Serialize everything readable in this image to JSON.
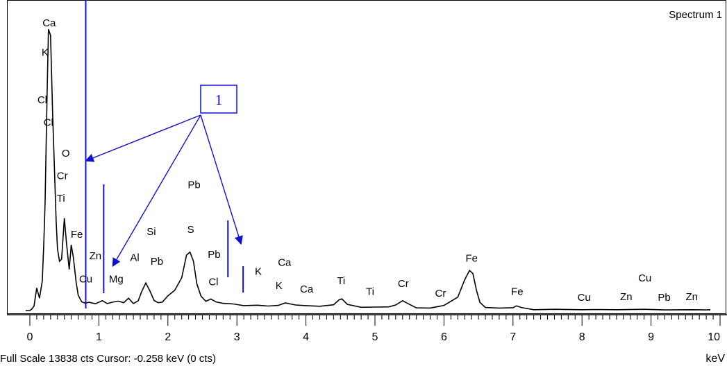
{
  "chart_data": {
    "type": "line",
    "title": "Spectrum 1",
    "xlabel": "keV",
    "xlim": [
      0,
      10
    ],
    "x_ticks": [
      "0",
      "1",
      "2",
      "3",
      "4",
      "5",
      "6",
      "7",
      "8",
      "9",
      "10"
    ],
    "grid": false,
    "series": [
      {
        "x": [
          -0.06,
          0.0,
          0.03,
          0.06,
          0.1,
          0.14,
          0.18,
          0.2,
          0.22,
          0.25,
          0.27,
          0.3,
          0.33,
          0.36,
          0.38,
          0.4,
          0.43,
          0.46,
          0.5,
          0.53,
          0.57,
          0.6,
          0.63,
          0.67,
          0.7,
          0.75,
          0.8,
          0.86,
          0.95,
          1.05,
          1.12,
          1.2,
          1.28,
          1.36,
          1.43,
          1.5,
          1.57,
          1.62,
          1.68,
          1.74,
          1.8,
          1.86,
          1.92,
          2.0,
          2.1,
          2.2,
          2.27,
          2.32,
          2.37,
          2.42,
          2.48,
          2.55,
          2.62,
          2.7,
          2.8,
          2.95,
          3.1,
          3.3,
          3.45,
          3.6,
          3.7,
          3.85,
          4.0,
          4.2,
          4.4,
          4.48,
          4.52,
          4.6,
          4.8,
          5.0,
          5.2,
          5.3,
          5.4,
          5.5,
          5.6,
          5.8,
          6.0,
          6.2,
          6.3,
          6.37,
          6.42,
          6.47,
          6.52,
          6.6,
          6.8,
          7.0,
          7.05,
          7.12,
          7.3,
          7.6,
          8.0,
          8.2,
          8.5,
          8.9,
          9.2,
          9.6,
          9.8,
          9.85
        ],
        "y": [
          0,
          0,
          80,
          220,
          1100,
          600,
          1450,
          3100,
          5200,
          10500,
          13700,
          13400,
          9600,
          6500,
          4400,
          3000,
          2400,
          2500,
          4500,
          3300,
          2000,
          3200,
          2600,
          1400,
          750,
          430,
          360,
          400,
          330,
          480,
          340,
          410,
          460,
          380,
          600,
          340,
          480,
          920,
          1340,
          950,
          490,
          380,
          410,
          720,
          990,
          1600,
          2700,
          2850,
          2400,
          1300,
          700,
          450,
          560,
          420,
          350,
          320,
          240,
          260,
          220,
          250,
          370,
          270,
          240,
          210,
          280,
          520,
          570,
          300,
          160,
          170,
          180,
          270,
          480,
          300,
          130,
          120,
          250,
          650,
          1500,
          1950,
          1800,
          1000,
          400,
          150,
          120,
          140,
          230,
          150,
          40,
          60,
          40,
          50,
          40,
          60,
          30,
          40,
          30,
          40
        ]
      }
    ],
    "peak_labels": [
      {
        "text": "Ca",
        "x": 0.28,
        "y": 13838
      },
      {
        "text": "K",
        "x": 0.22,
        "y": 12400
      },
      {
        "text": "Cl",
        "x": 0.18,
        "y": 10100
      },
      {
        "text": "Cl",
        "x": 0.27,
        "y": 9000
      },
      {
        "text": "O",
        "x": 0.52,
        "y": 7500
      },
      {
        "text": "Cr",
        "x": 0.47,
        "y": 6400
      },
      {
        "text": "Ti",
        "x": 0.45,
        "y": 5300
      },
      {
        "text": "Fe",
        "x": 0.68,
        "y": 3550
      },
      {
        "text": "Zn",
        "x": 0.95,
        "y": 2500
      },
      {
        "text": "Cu",
        "x": 0.81,
        "y": 1360
      },
      {
        "text": "Mg",
        "x": 1.25,
        "y": 1360
      },
      {
        "text": "Al",
        "x": 1.52,
        "y": 2420
      },
      {
        "text": "Pb",
        "x": 1.84,
        "y": 2220
      },
      {
        "text": "Si",
        "x": 1.76,
        "y": 3680
      },
      {
        "text": "Pb",
        "x": 2.38,
        "y": 5950
      },
      {
        "text": "S",
        "x": 2.33,
        "y": 3780
      },
      {
        "text": "Pb",
        "x": 2.67,
        "y": 2560
      },
      {
        "text": "Cl",
        "x": 2.66,
        "y": 1240
      },
      {
        "text": "K",
        "x": 3.31,
        "y": 1730
      },
      {
        "text": "Ca",
        "x": 3.69,
        "y": 2180
      },
      {
        "text": "K",
        "x": 3.61,
        "y": 1040
      },
      {
        "text": "Ca",
        "x": 4.01,
        "y": 870
      },
      {
        "text": "Ti",
        "x": 4.51,
        "y": 1280
      },
      {
        "text": "Ti",
        "x": 4.93,
        "y": 760
      },
      {
        "text": "Cr",
        "x": 5.41,
        "y": 1140
      },
      {
        "text": "Cr",
        "x": 5.95,
        "y": 670
      },
      {
        "text": "Fe",
        "x": 6.4,
        "y": 2380
      },
      {
        "text": "Fe",
        "x": 7.06,
        "y": 760
      },
      {
        "text": "Cu",
        "x": 8.03,
        "y": 470
      },
      {
        "text": "Zn",
        "x": 8.64,
        "y": 510
      },
      {
        "text": "Cu",
        "x": 8.91,
        "y": 1410
      },
      {
        "text": "Pb",
        "x": 9.19,
        "y": 470
      },
      {
        "text": "Zn",
        "x": 9.59,
        "y": 510
      }
    ],
    "cursor_keV": -0.258,
    "full_scale_cts": 13838,
    "marker_lines_keV": [
      0.81,
      1.07,
      2.87,
      3.09
    ],
    "callout_label": "1",
    "callout_targets_keV": [
      0.81,
      1.2,
      3.06
    ]
  },
  "status_bar": {
    "text": "Full Scale 13838 cts  Cursor: -0.258 keV (0 cts)"
  }
}
